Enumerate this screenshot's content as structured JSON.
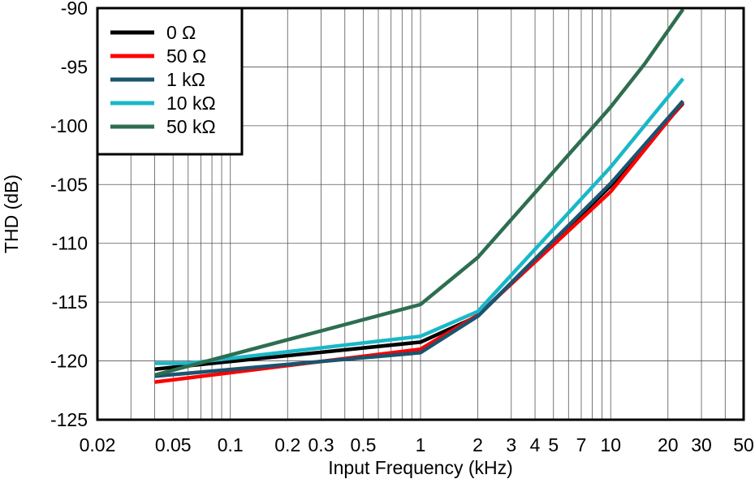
{
  "chart_data": {
    "type": "line",
    "title": "",
    "xlabel": "Input Frequency (kHz)",
    "ylabel": "THD (dB)",
    "xscale": "log",
    "xlim": [
      0.02,
      50
    ],
    "ylim": [
      -125,
      -90
    ],
    "grid": true,
    "legend_position": "top-left",
    "x_ticks": [
      {
        "value": 0.02,
        "label": "0.02"
      },
      {
        "value": 0.05,
        "label": "0.05"
      },
      {
        "value": 0.1,
        "label": "0.1"
      },
      {
        "value": 0.2,
        "label": "0.2"
      },
      {
        "value": 0.3,
        "label": "0.3"
      },
      {
        "value": 0.5,
        "label": "0.5"
      },
      {
        "value": 1,
        "label": "1"
      },
      {
        "value": 2,
        "label": "2"
      },
      {
        "value": 3,
        "label": "3"
      },
      {
        "value": 4,
        "label": "4"
      },
      {
        "value": 5,
        "label": "5"
      },
      {
        "value": 7,
        "label": "7"
      },
      {
        "value": 10,
        "label": "10"
      },
      {
        "value": 20,
        "label": "20"
      },
      {
        "value": 30,
        "label": "30"
      },
      {
        "value": 50,
        "label": "50"
      }
    ],
    "y_ticks": [
      {
        "value": -90,
        "label": "-90"
      },
      {
        "value": -95,
        "label": "-95"
      },
      {
        "value": -100,
        "label": "-100"
      },
      {
        "value": -105,
        "label": "-105"
      },
      {
        "value": -110,
        "label": "-110"
      },
      {
        "value": -115,
        "label": "-115"
      },
      {
        "value": -120,
        "label": "-120"
      },
      {
        "value": -125,
        "label": "-125"
      }
    ],
    "series": [
      {
        "name": "0 Ω",
        "color": "#000000",
        "x": [
          0.04,
          1,
          2,
          10,
          24
        ],
        "y": [
          -120.7,
          -118.4,
          -116.2,
          -105.1,
          -98.1
        ]
      },
      {
        "name": "50 Ω",
        "color": "#ff0000",
        "x": [
          0.04,
          1,
          2,
          10,
          24
        ],
        "y": [
          -121.8,
          -119.0,
          -116.1,
          -105.6,
          -98.0
        ]
      },
      {
        "name": "1 kΩ",
        "color": "#1a5470",
        "x": [
          0.04,
          1,
          2,
          10,
          24
        ],
        "y": [
          -121.3,
          -119.3,
          -116.2,
          -104.9,
          -97.9
        ]
      },
      {
        "name": "10 kΩ",
        "color": "#19b8c8",
        "x": [
          0.04,
          0.06,
          1,
          2,
          10,
          24
        ],
        "y": [
          -120.2,
          -120.2,
          -117.9,
          -115.8,
          -103.5,
          -96.0
        ]
      },
      {
        "name": "50 kΩ",
        "color": "#2e6e50",
        "x": [
          0.04,
          1,
          2,
          4,
          10,
          15,
          24
        ],
        "y": [
          -121.2,
          -115.2,
          -111.2,
          -105.7,
          -98.4,
          -94.8,
          -90.1
        ]
      }
    ]
  }
}
